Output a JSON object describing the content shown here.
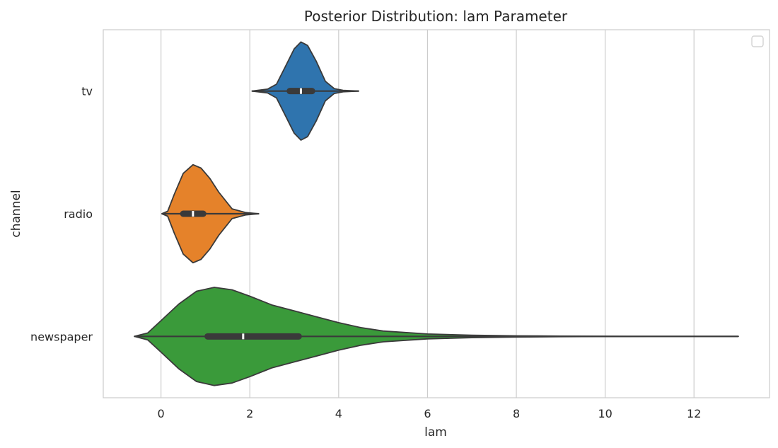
{
  "chart_data": {
    "type": "violin",
    "title": "Posterior Distribution: lam Parameter",
    "xlabel": "lam",
    "ylabel": "channel",
    "xlim": [
      -1.3,
      13.7
    ],
    "xticks": [
      0,
      2,
      4,
      6,
      8,
      10,
      12
    ],
    "xtick_labels": [
      "0",
      "2",
      "4",
      "6",
      "8",
      "10",
      "12"
    ],
    "grid": true,
    "orientation": "horizontal",
    "legend": {
      "placement": "top-right",
      "entries": []
    },
    "series": [
      {
        "name": "tv",
        "color": "#2f74ae",
        "range": [
          2.05,
          4.45
        ],
        "whisker": [
          2.05,
          4.45
        ],
        "q1": 2.9,
        "median": 3.15,
        "q3": 3.4,
        "profile": [
          [
            2.05,
            0.0
          ],
          [
            2.4,
            0.04
          ],
          [
            2.6,
            0.14
          ],
          [
            2.8,
            0.5
          ],
          [
            3.0,
            0.86
          ],
          [
            3.15,
            1.0
          ],
          [
            3.3,
            0.93
          ],
          [
            3.5,
            0.6
          ],
          [
            3.7,
            0.2
          ],
          [
            3.9,
            0.05
          ],
          [
            4.1,
            0.015
          ],
          [
            4.45,
            0.0
          ]
        ]
      },
      {
        "name": "radio",
        "color": "#e5822a",
        "range": [
          0.02,
          2.2
        ],
        "whisker": [
          0.08,
          1.6
        ],
        "q1": 0.5,
        "median": 0.72,
        "q3": 0.95,
        "profile": [
          [
            0.02,
            0.0
          ],
          [
            0.15,
            0.05
          ],
          [
            0.3,
            0.4
          ],
          [
            0.5,
            0.82
          ],
          [
            0.72,
            1.0
          ],
          [
            0.9,
            0.93
          ],
          [
            1.1,
            0.72
          ],
          [
            1.3,
            0.44
          ],
          [
            1.6,
            0.1
          ],
          [
            1.9,
            0.025
          ],
          [
            2.2,
            0.0
          ]
        ]
      },
      {
        "name": "newspaper",
        "color": "#3a9a3a",
        "range": [
          -0.6,
          13.0
        ],
        "whisker": [
          0.05,
          6.1
        ],
        "q1": 1.05,
        "median": 1.85,
        "q3": 3.1,
        "profile": [
          [
            -0.6,
            0.0
          ],
          [
            -0.3,
            0.07
          ],
          [
            0.0,
            0.32
          ],
          [
            0.4,
            0.66
          ],
          [
            0.8,
            0.92
          ],
          [
            1.2,
            1.0
          ],
          [
            1.6,
            0.95
          ],
          [
            2.0,
            0.82
          ],
          [
            2.5,
            0.64
          ],
          [
            3.0,
            0.52
          ],
          [
            3.5,
            0.4
          ],
          [
            4.0,
            0.28
          ],
          [
            4.5,
            0.18
          ],
          [
            5.0,
            0.11
          ],
          [
            6.0,
            0.05
          ],
          [
            7.0,
            0.025
          ],
          [
            8.0,
            0.012
          ],
          [
            9.0,
            0.006
          ],
          [
            10.0,
            0.002
          ],
          [
            11.0,
            0.0008
          ],
          [
            13.0,
            0.0
          ]
        ]
      }
    ]
  }
}
